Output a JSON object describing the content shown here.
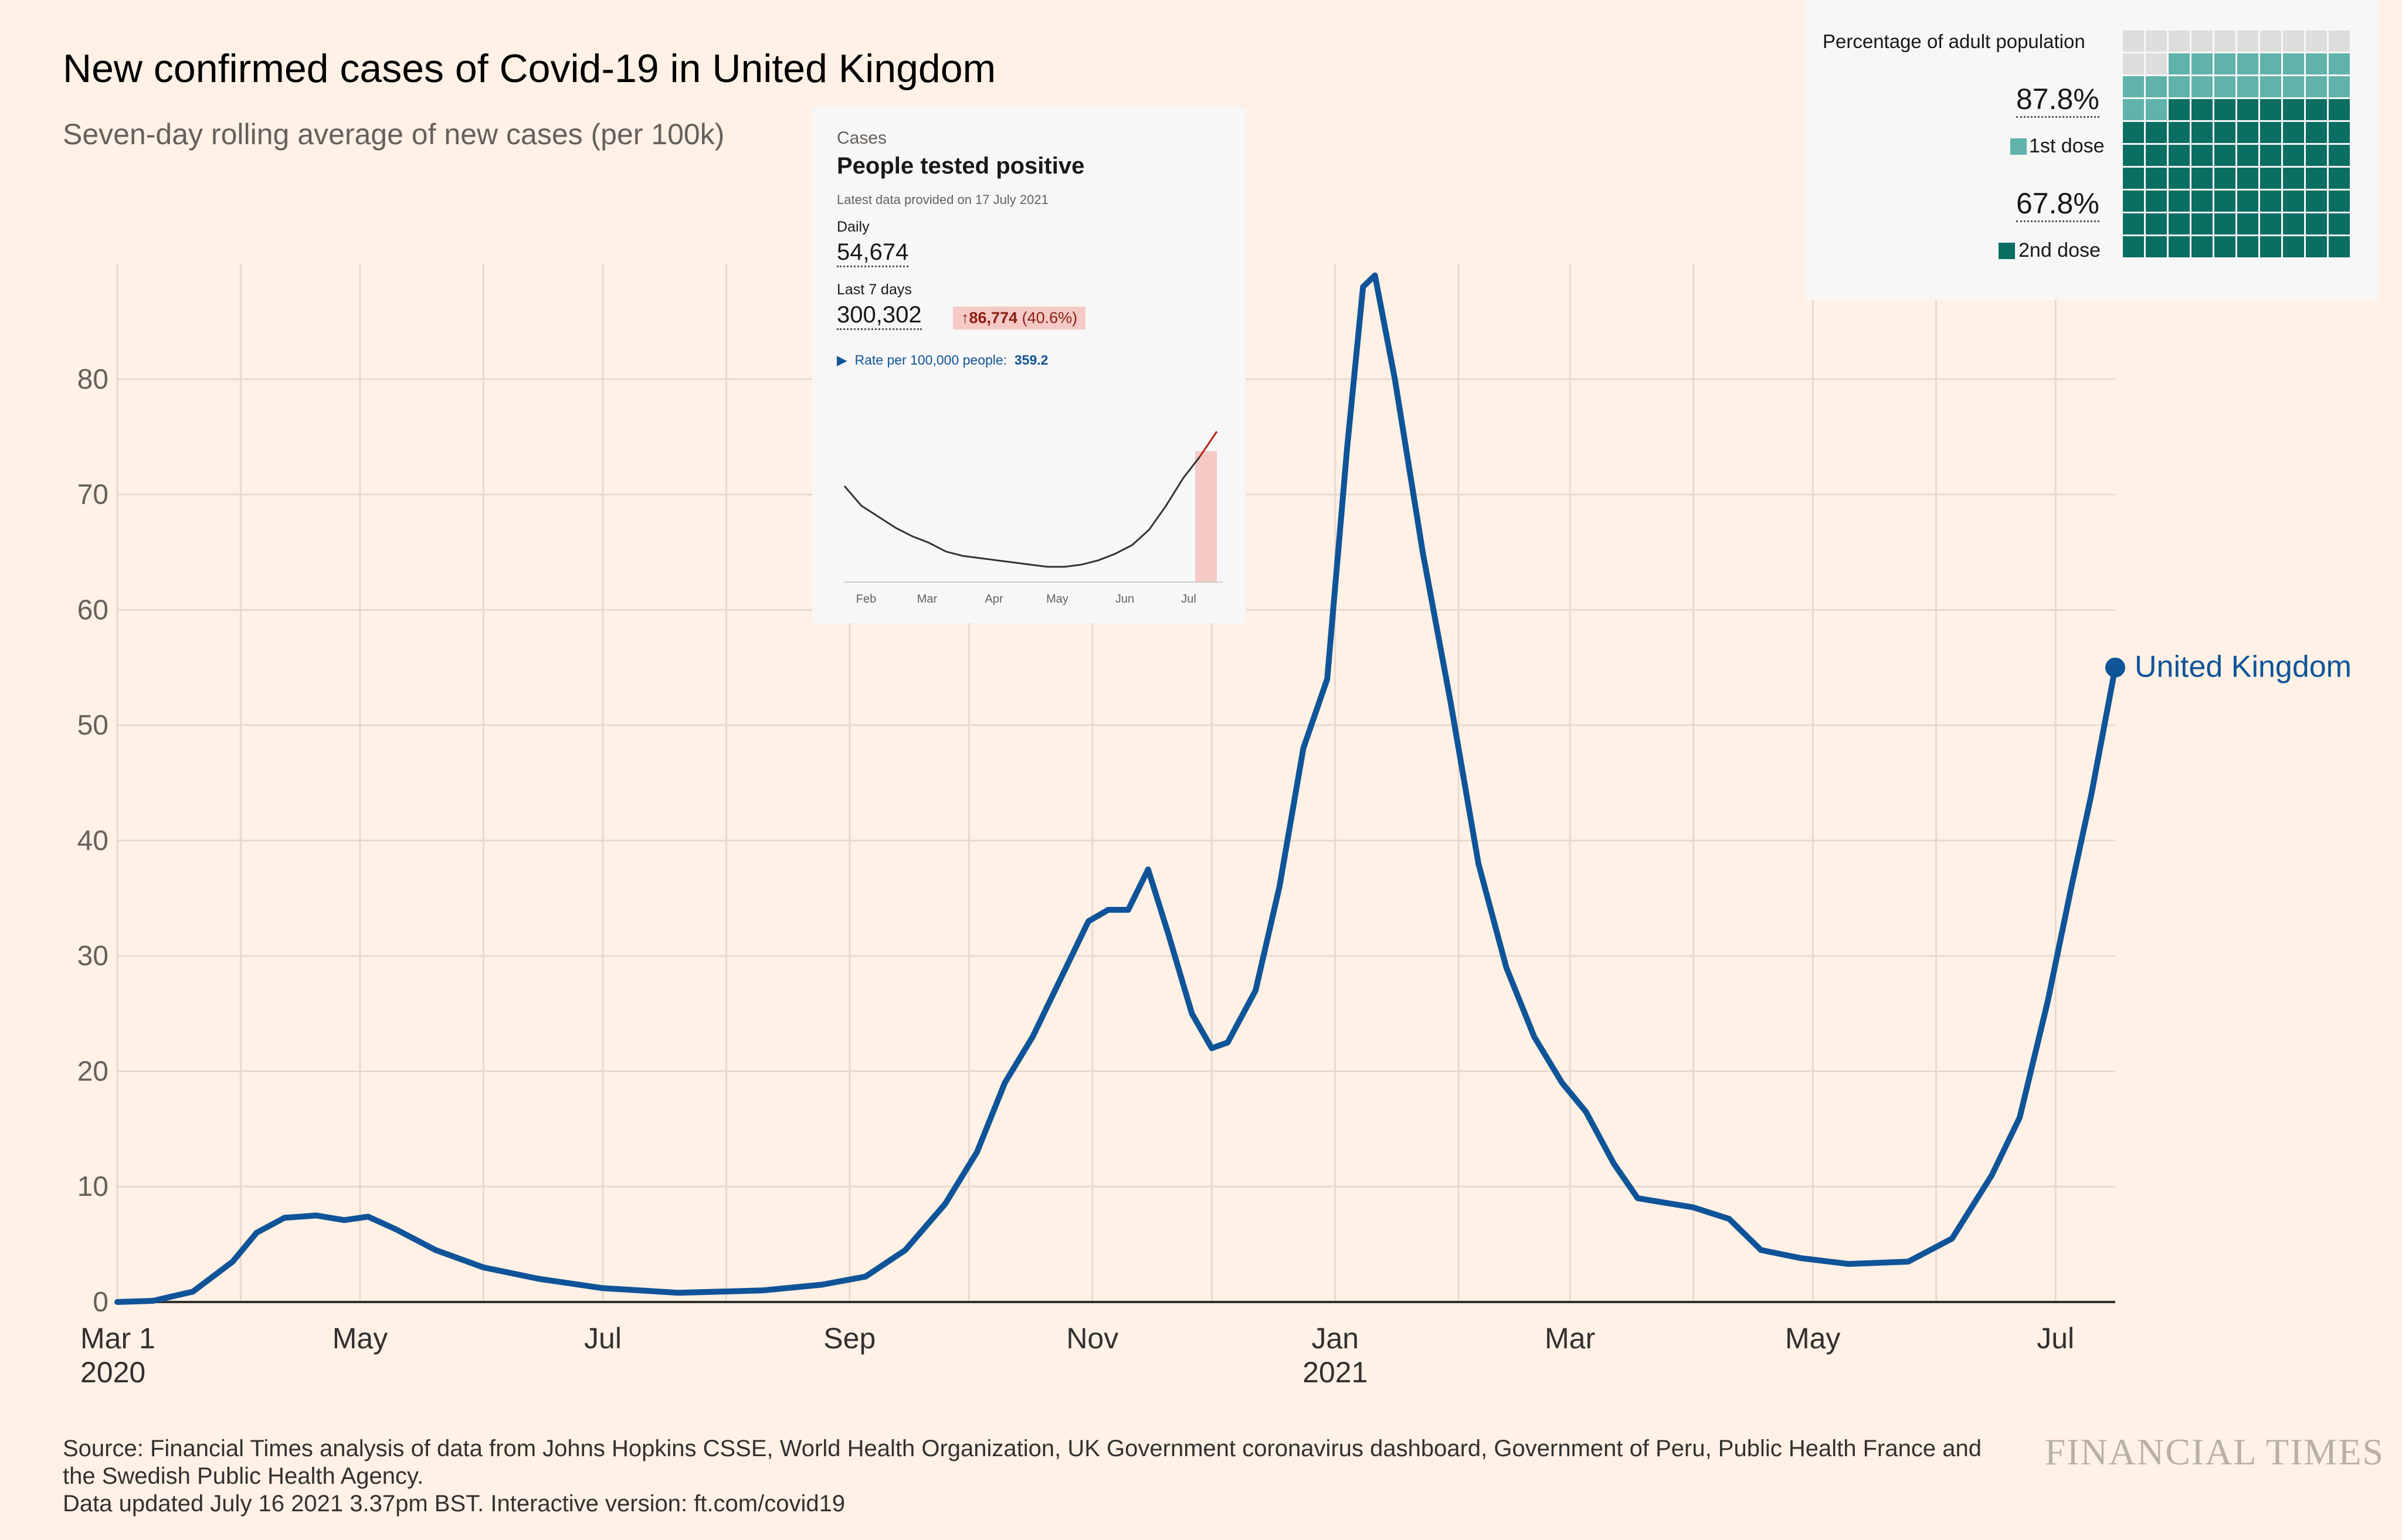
{
  "title": "New confirmed cases of Covid-19 in United Kingdom",
  "subtitle": "Seven-day rolling average of new cases (per 100k)",
  "footer": {
    "line1": "Source: Financial Times analysis of data from Johns Hopkins CSSE, World Health Organization, UK Government coronavirus dashboard, Government of Peru, Public Health France and",
    "line2": "the Swedish Public Health Agency.",
    "line3": "Data updated July 16 2021 3.37pm BST. Interactive version: ft.com/covid19"
  },
  "logo": "FINANCIAL TIMES",
  "colors": {
    "background": "#fff1e5",
    "line": "#0f5499",
    "grid": "#e6d9ce",
    "axis": "#33302e"
  },
  "chart_data": [
    {
      "type": "line",
      "title": "New confirmed cases of Covid-19 in United Kingdom",
      "subtitle": "Seven-day rolling average of new cases (per 100k)",
      "xlabel": "",
      "ylabel": "",
      "x_range": [
        "2020-03-01",
        "2021-07-16"
      ],
      "ylim": [
        0,
        90
      ],
      "yticks": [
        0,
        10,
        20,
        30,
        40,
        50,
        60,
        70,
        80
      ],
      "xticks": [
        {
          "date": "2020-03-01",
          "label": "Mar 1",
          "sub": "2020"
        },
        {
          "date": "2020-05-01",
          "label": "May",
          "sub": ""
        },
        {
          "date": "2020-07-01",
          "label": "Jul",
          "sub": ""
        },
        {
          "date": "2020-09-01",
          "label": "Sep",
          "sub": ""
        },
        {
          "date": "2020-11-01",
          "label": "Nov",
          "sub": ""
        },
        {
          "date": "2021-01-01",
          "label": "Jan",
          "sub": "2021"
        },
        {
          "date": "2021-03-01",
          "label": "Mar",
          "sub": ""
        },
        {
          "date": "2021-05-01",
          "label": "May",
          "sub": ""
        },
        {
          "date": "2021-07-01",
          "label": "Jul",
          "sub": ""
        }
      ],
      "grid": true,
      "series": [
        {
          "name": "United Kingdom",
          "color": "#0f5499",
          "points": [
            [
              "2020-03-01",
              0
            ],
            [
              "2020-03-10",
              0.1
            ],
            [
              "2020-03-20",
              0.9
            ],
            [
              "2020-03-30",
              3.5
            ],
            [
              "2020-04-05",
              6.0
            ],
            [
              "2020-04-12",
              7.3
            ],
            [
              "2020-04-20",
              7.5
            ],
            [
              "2020-04-27",
              7.1
            ],
            [
              "2020-05-03",
              7.4
            ],
            [
              "2020-05-10",
              6.3
            ],
            [
              "2020-05-20",
              4.5
            ],
            [
              "2020-06-01",
              3.0
            ],
            [
              "2020-06-15",
              2.0
            ],
            [
              "2020-07-01",
              1.2
            ],
            [
              "2020-07-20",
              0.8
            ],
            [
              "2020-08-10",
              1.0
            ],
            [
              "2020-08-25",
              1.5
            ],
            [
              "2020-09-05",
              2.2
            ],
            [
              "2020-09-15",
              4.5
            ],
            [
              "2020-09-25",
              8.5
            ],
            [
              "2020-10-03",
              13
            ],
            [
              "2020-10-10",
              19
            ],
            [
              "2020-10-17",
              23
            ],
            [
              "2020-10-24",
              28
            ],
            [
              "2020-10-31",
              33
            ],
            [
              "2020-11-05",
              34
            ],
            [
              "2020-11-10",
              34
            ],
            [
              "2020-11-15",
              37.5
            ],
            [
              "2020-11-20",
              32
            ],
            [
              "2020-11-26",
              25
            ],
            [
              "2020-12-01",
              22
            ],
            [
              "2020-12-05",
              22.5
            ],
            [
              "2020-12-12",
              27
            ],
            [
              "2020-12-18",
              36
            ],
            [
              "2020-12-24",
              48
            ],
            [
              "2020-12-30",
              54
            ],
            [
              "2021-01-04",
              74
            ],
            [
              "2021-01-08",
              88
            ],
            [
              "2021-01-11",
              89
            ],
            [
              "2021-01-16",
              80
            ],
            [
              "2021-01-23",
              65
            ],
            [
              "2021-01-30",
              52
            ],
            [
              "2021-02-06",
              38
            ],
            [
              "2021-02-13",
              29
            ],
            [
              "2021-02-20",
              23
            ],
            [
              "2021-02-27",
              19
            ],
            [
              "2021-03-05",
              16.5
            ],
            [
              "2021-03-12",
              12
            ],
            [
              "2021-03-18",
              9.0
            ],
            [
              "2021-03-25",
              8.6
            ],
            [
              "2021-04-01",
              8.2
            ],
            [
              "2021-04-10",
              7.2
            ],
            [
              "2021-04-18",
              4.5
            ],
            [
              "2021-04-28",
              3.8
            ],
            [
              "2021-05-10",
              3.3
            ],
            [
              "2021-05-25",
              3.5
            ],
            [
              "2021-06-05",
              5.5
            ],
            [
              "2021-06-15",
              11
            ],
            [
              "2021-06-22",
              16
            ],
            [
              "2021-06-29",
              26
            ],
            [
              "2021-07-05",
              36
            ],
            [
              "2021-07-10",
              44
            ],
            [
              "2021-07-16",
              55
            ]
          ]
        }
      ],
      "end_label": "United Kingdom"
    },
    {
      "type": "line",
      "title": "People tested positive",
      "x_labels": [
        "Feb",
        "Mar",
        "Apr",
        "May",
        "Jun",
        "Jul"
      ],
      "y_relative": [
        88,
        70,
        60,
        50,
        42,
        36,
        28,
        24,
        22,
        20,
        18,
        16,
        14,
        14,
        16,
        20,
        26,
        34,
        48,
        70,
        95,
        115,
        138
      ],
      "highlight": "last 7 days"
    }
  ],
  "card": {
    "label": "Cases",
    "title": "People tested positive",
    "note": "Latest data provided on 17 July 2021",
    "daily_label": "Daily",
    "daily_value": "54,674",
    "last7_label": "Last 7 days",
    "last7_value": "300,302",
    "change_arrow": "↑",
    "change_value": "86,774",
    "change_pct": "(40.6%)",
    "rate_marker": "▶",
    "rate_label": "Rate per 100,000 people:",
    "rate_value": "359.2",
    "colors": {
      "line": "#333333",
      "recent_line": "#b2261a",
      "recent_fill": "#f5c9c5"
    }
  },
  "vaccination": {
    "heading": "Percentage of adult population",
    "first_dose_pct": "87.8%",
    "first_dose_label": "1st dose",
    "second_dose_pct": "67.8%",
    "second_dose_label": "2nd dose",
    "first_dose_value": 87.8,
    "second_dose_value": 67.8,
    "colors": {
      "first": "#5fb3ab",
      "second": "#0a6e62",
      "empty": "#dddddd"
    }
  }
}
